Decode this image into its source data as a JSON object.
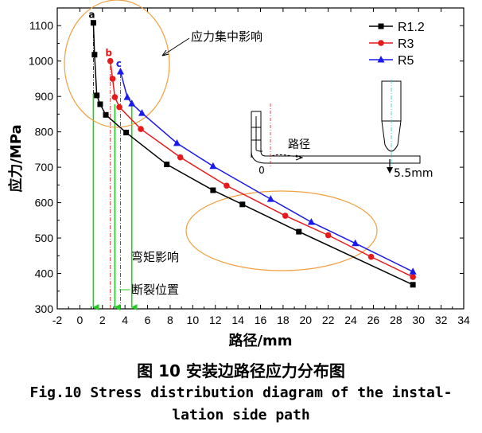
{
  "chart_data": {
    "type": "line",
    "xlabel": "路径/mm",
    "ylabel": "应力/MPa",
    "xlim": [
      -2,
      34
    ],
    "ylim": [
      300,
      1150
    ],
    "xticks": [
      -2,
      0,
      2,
      4,
      6,
      8,
      10,
      12,
      14,
      16,
      18,
      20,
      22,
      24,
      26,
      28,
      30,
      32,
      34
    ],
    "yticks": [
      300,
      400,
      500,
      600,
      700,
      800,
      900,
      1000,
      1100
    ],
    "legend_position": "top-right",
    "grid": false,
    "series": [
      {
        "name": "R1.2",
        "color": "#000000",
        "marker": "square",
        "x": [
          1.2,
          1.3,
          1.5,
          1.8,
          2.3,
          4.1,
          7.7,
          11.8,
          14.4,
          19.4,
          29.5
        ],
        "y": [
          1108,
          1018,
          903,
          878,
          848,
          798,
          708,
          635,
          595,
          518,
          368
        ]
      },
      {
        "name": "R3",
        "color": "#e8191b",
        "marker": "circle",
        "x": [
          2.7,
          2.9,
          3.1,
          3.5,
          5.4,
          8.9,
          13.0,
          18.2,
          22.0,
          25.8,
          29.5
        ],
        "y": [
          1000,
          950,
          898,
          870,
          808,
          728,
          648,
          563,
          508,
          447,
          390
        ]
      },
      {
        "name": "R5",
        "color": "#1a1aee",
        "marker": "triangle",
        "x": [
          3.6,
          4.2,
          4.6,
          5.5,
          8.6,
          11.8,
          16.9,
          20.5,
          24.4,
          29.5
        ],
        "y": [
          970,
          898,
          880,
          853,
          768,
          703,
          610,
          545,
          485,
          405
        ]
      }
    ],
    "point_labels": [
      {
        "text": "a",
        "color": "#000000",
        "x": 1.2,
        "y": 1108
      },
      {
        "text": "b",
        "color": "#e8191b",
        "x": 2.7,
        "y": 1000
      },
      {
        "text": "c",
        "color": "#1a1aee",
        "x": 3.6,
        "y": 970
      }
    ],
    "annotations": {
      "stress_concentration": "应力集中影响",
      "bending_moment": "弯矩影响",
      "fracture_position": "断裂位置",
      "path": "路径",
      "origin": "0",
      "offset": "5.5mm"
    },
    "fracture_lines_x": [
      1.2,
      3.1,
      4.6
    ],
    "dashdot_lines": [
      {
        "x": 1.2,
        "color": "#000000"
      },
      {
        "x": 2.7,
        "color": "#e8191b"
      },
      {
        "x": 3.6,
        "color": "#1a1aee"
      }
    ]
  },
  "caption": {
    "cn": "图 10 安装边路径应力分布图",
    "en_line1": "Fig.10 Stress distribution diagram of the instal-",
    "en_line2": "lation side path"
  }
}
